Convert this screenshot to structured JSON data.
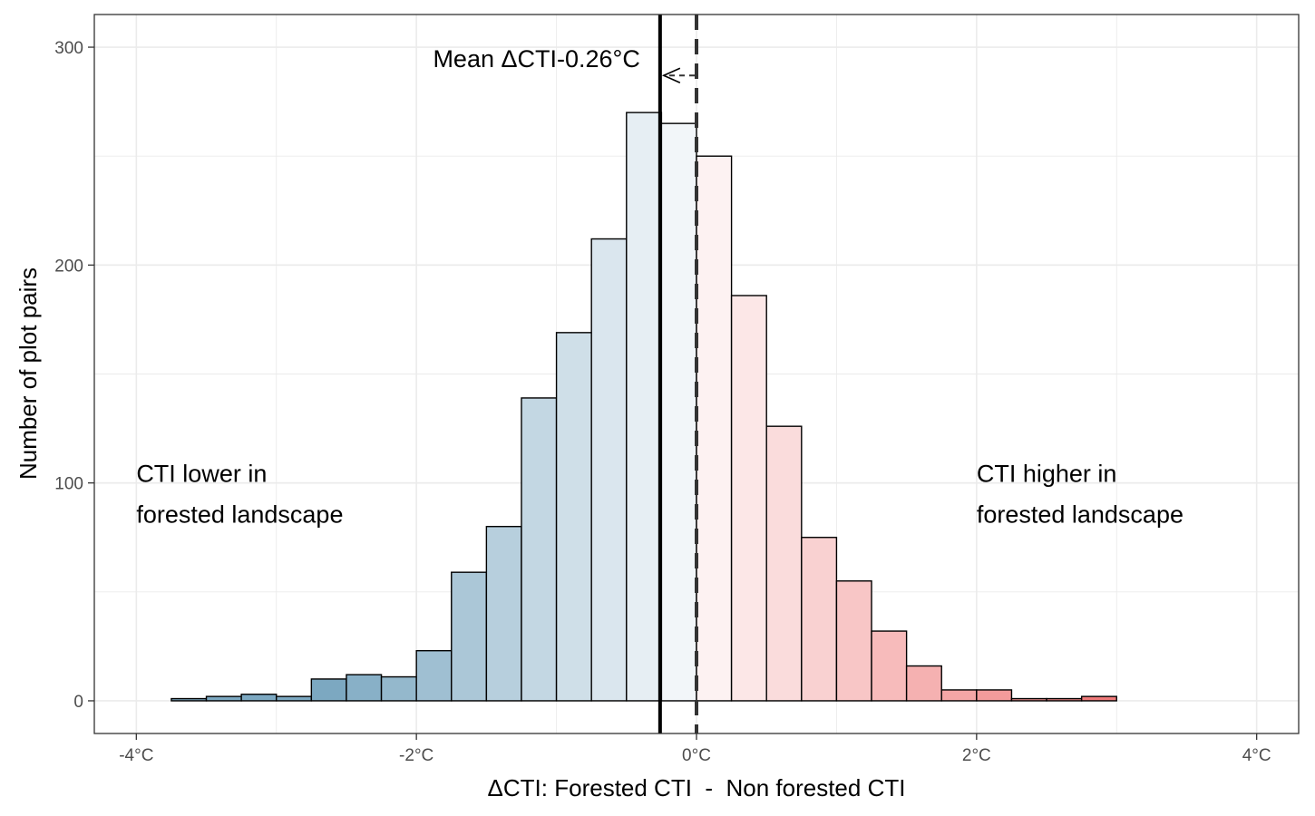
{
  "chart_data": {
    "type": "bar",
    "xlabel": "ΔCTI: Forested CTI  -  Non forested CTI",
    "ylabel": "Number of plot pairs",
    "xlim": [
      -4.3,
      4.3
    ],
    "ylim": [
      -15,
      315
    ],
    "bin_width": 0.25,
    "x_ticks": [
      {
        "value": -4,
        "label": "-4°C"
      },
      {
        "value": -2,
        "label": "-2°C"
      },
      {
        "value": 0,
        "label": "0°C"
      },
      {
        "value": 2,
        "label": "2°C"
      },
      {
        "value": 4,
        "label": "4°C"
      }
    ],
    "y_ticks": [
      {
        "value": 0,
        "label": "0"
      },
      {
        "value": 100,
        "label": "100"
      },
      {
        "value": 200,
        "label": "200"
      },
      {
        "value": 300,
        "label": "300"
      }
    ],
    "grid": true,
    "bins": [
      {
        "x0": -4.0,
        "x1": -3.75,
        "count": 0
      },
      {
        "x0": -3.75,
        "x1": -3.5,
        "count": 1
      },
      {
        "x0": -3.5,
        "x1": -3.25,
        "count": 2
      },
      {
        "x0": -3.25,
        "x1": -3.0,
        "count": 3
      },
      {
        "x0": -3.0,
        "x1": -2.75,
        "count": 2
      },
      {
        "x0": -2.75,
        "x1": -2.5,
        "count": 10
      },
      {
        "x0": -2.5,
        "x1": -2.25,
        "count": 12
      },
      {
        "x0": -2.25,
        "x1": -2.0,
        "count": 11
      },
      {
        "x0": -2.0,
        "x1": -1.75,
        "count": 23
      },
      {
        "x0": -1.75,
        "x1": -1.5,
        "count": 59
      },
      {
        "x0": -1.5,
        "x1": -1.25,
        "count": 80
      },
      {
        "x0": -1.25,
        "x1": -1.0,
        "count": 139
      },
      {
        "x0": -1.0,
        "x1": -0.75,
        "count": 169
      },
      {
        "x0": -0.75,
        "x1": -0.5,
        "count": 212
      },
      {
        "x0": -0.5,
        "x1": -0.25,
        "count": 270
      },
      {
        "x0": -0.25,
        "x1": 0.0,
        "count": 265
      },
      {
        "x0": 0.0,
        "x1": 0.25,
        "count": 250
      },
      {
        "x0": 0.25,
        "x1": 0.5,
        "count": 186
      },
      {
        "x0": 0.5,
        "x1": 0.75,
        "count": 126
      },
      {
        "x0": 0.75,
        "x1": 1.0,
        "count": 75
      },
      {
        "x0": 1.0,
        "x1": 1.25,
        "count": 55
      },
      {
        "x0": 1.25,
        "x1": 1.5,
        "count": 32
      },
      {
        "x0": 1.5,
        "x1": 1.75,
        "count": 16
      },
      {
        "x0": 1.75,
        "x1": 2.0,
        "count": 5
      },
      {
        "x0": 2.0,
        "x1": 2.25,
        "count": 5
      },
      {
        "x0": 2.25,
        "x1": 2.5,
        "count": 1
      },
      {
        "x0": 2.5,
        "x1": 2.75,
        "count": 1
      },
      {
        "x0": 2.75,
        "x1": 3.0,
        "count": 2
      },
      {
        "x0": 3.0,
        "x1": 3.25,
        "count": 0
      },
      {
        "x0": 3.25,
        "x1": 3.5,
        "count": 0
      },
      {
        "x0": 3.5,
        "x1": 3.75,
        "count": 0
      },
      {
        "x0": 3.75,
        "x1": 4.0,
        "count": 0
      }
    ],
    "mean_line": {
      "value": -0.26,
      "label": "Mean ΔCTI-0.26°C"
    },
    "zero_line": {
      "value": 0,
      "style": "dashed"
    },
    "arrow": {
      "from_x": 0,
      "to_x": -0.26,
      "y": 287
    },
    "annotations": [
      {
        "lines": [
          "CTI lower in",
          "forested landscape"
        ],
        "x": -4.0,
        "y": 100
      },
      {
        "lines": [
          "CTI higher in",
          "forested landscape"
        ],
        "x": 2.0,
        "y": 100
      }
    ],
    "colors": {
      "negative_dark": "#7ca8c1",
      "negative_light": "#f2f6f9",
      "positive_light": "#fdf2f2",
      "positive_dark": "#ef7a7a",
      "bar_outline": "#000000",
      "grid": "#ebebeb",
      "panel_border": "#333333"
    }
  }
}
